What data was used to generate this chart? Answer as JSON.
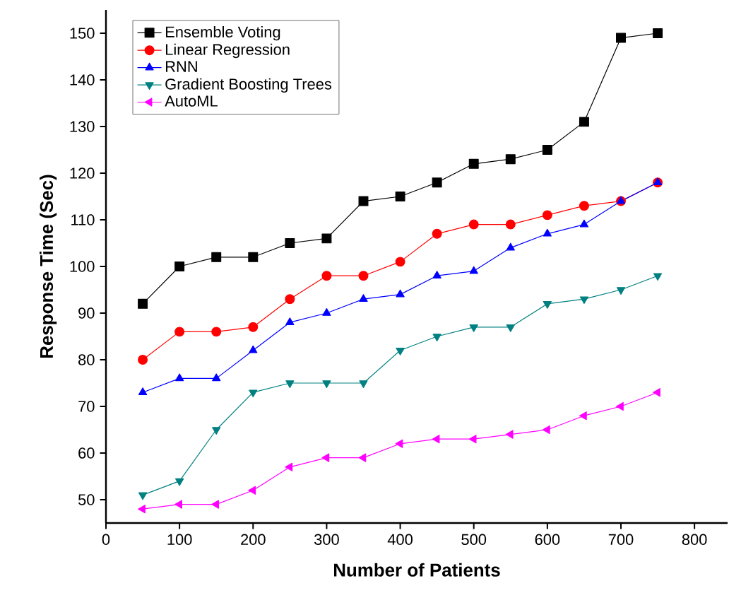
{
  "chart_data": {
    "type": "line",
    "xlabel": "Number of Patients",
    "ylabel": "Response Time (Sec)",
    "x": [
      50,
      100,
      150,
      200,
      250,
      300,
      350,
      400,
      450,
      500,
      550,
      600,
      650,
      700,
      750
    ],
    "xlim": [
      0,
      845
    ],
    "xticks": [
      0,
      100,
      200,
      300,
      400,
      500,
      600,
      700,
      800
    ],
    "ylim": [
      45,
      155
    ],
    "yticks": [
      50,
      60,
      70,
      80,
      90,
      100,
      110,
      120,
      130,
      140,
      150
    ],
    "legend": "top left",
    "grid": false,
    "line_style": "solid",
    "series": [
      {
        "name": "Ensemble Voting",
        "color": "#000000",
        "marker": "square",
        "values": [
          92,
          100,
          102,
          102,
          105,
          106,
          114,
          115,
          118,
          122,
          123,
          125,
          131,
          149,
          150
        ]
      },
      {
        "name": "Linear Regression",
        "color": "#ff0000",
        "marker": "circle",
        "values": [
          80,
          86,
          86,
          87,
          93,
          98,
          98,
          101,
          107,
          109,
          109,
          111,
          113,
          114,
          118
        ]
      },
      {
        "name": "RNN",
        "color": "#0000ff",
        "marker": "triangle",
        "values": [
          73,
          76,
          76,
          82,
          88,
          90,
          93,
          94,
          98,
          99,
          104,
          107,
          109,
          114,
          118
        ]
      },
      {
        "name": "Gradient Boosting Trees",
        "color": "#008080",
        "marker": "triangle-down",
        "values": [
          51,
          54,
          65,
          73,
          75,
          75,
          75,
          82,
          85,
          87,
          87,
          92,
          93,
          95,
          98
        ]
      },
      {
        "name": "AutoML",
        "color": "#ff00ff",
        "marker": "triangle-left",
        "values": [
          48,
          49,
          49,
          52,
          57,
          59,
          59,
          62,
          63,
          63,
          64,
          65,
          68,
          70,
          73
        ]
      }
    ]
  }
}
